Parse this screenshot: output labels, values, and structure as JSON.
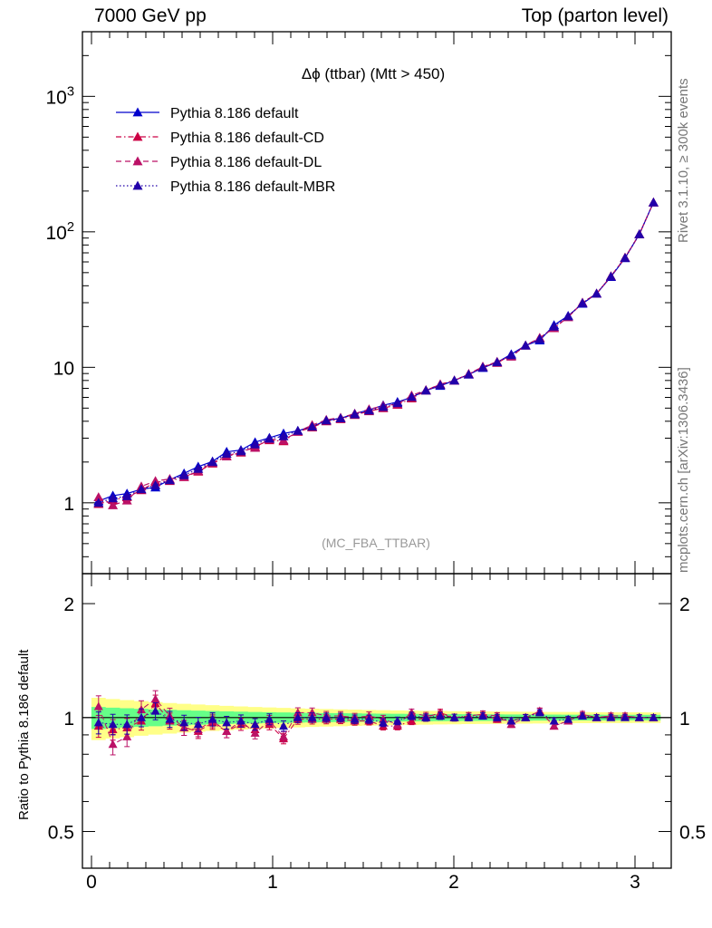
{
  "header": {
    "left": "7000 GeV pp",
    "right": "Top (parton level)"
  },
  "side_labels": {
    "rivet": "Rivet 3.1.10, ≥ 300k events",
    "mcplots": "mcplots.cern.ch [arXiv:1306.3436]"
  },
  "ratio_ylabel": "Ratio to Pythia 8.186 default",
  "chart_data": {
    "type": "line",
    "title": "Δϕ (ttbar) (Mtt > 450)",
    "watermark": "(MC_FBA_TTBAR)",
    "main": {
      "yscale": "log",
      "ylim": [
        0.3,
        3000
      ],
      "xlim": [
        -0.05,
        3.2
      ],
      "yticks": [
        1,
        10,
        100,
        1000
      ],
      "ytick_labels": [
        "1",
        "10",
        "10^2",
        "10^3"
      ],
      "legend_position": "top-left",
      "series": [
        {
          "name": "Pythia 8.186 default",
          "color": "#0000cc",
          "line": "solid",
          "marker": "triangle",
          "x": [
            0.039,
            0.118,
            0.196,
            0.275,
            0.353,
            0.432,
            0.511,
            0.589,
            0.668,
            0.746,
            0.825,
            0.903,
            0.982,
            1.06,
            1.139,
            1.218,
            1.296,
            1.375,
            1.453,
            1.532,
            1.61,
            1.689,
            1.767,
            1.846,
            1.925,
            2.003,
            2.082,
            2.16,
            2.239,
            2.317,
            2.396,
            2.474,
            2.553,
            2.631,
            2.71,
            2.788,
            2.867,
            2.945,
            3.024,
            3.102
          ],
          "y": [
            1.03,
            1.13,
            1.17,
            1.26,
            1.3,
            1.48,
            1.65,
            1.85,
            2.02,
            2.38,
            2.45,
            2.8,
            3.02,
            3.25,
            3.4,
            3.65,
            4.05,
            4.2,
            4.55,
            4.85,
            5.25,
            5.55,
            6.0,
            6.75,
            7.3,
            8.0,
            8.85,
            9.9,
            10.9,
            12.5,
            14.5,
            15.8,
            20.5,
            24.0,
            29.5,
            35.0,
            46.5,
            64.0,
            96.0,
            165
          ]
        },
        {
          "name": "Pythia 8.186 default-CD",
          "color": "#cc0044",
          "line": "dashdot",
          "marker": "triangle",
          "x": [
            0.039,
            0.118,
            0.196,
            0.275,
            0.353,
            0.432,
            0.511,
            0.589,
            0.668,
            0.746,
            0.825,
            0.903,
            0.982,
            1.06,
            1.139,
            1.218,
            1.296,
            1.375,
            1.453,
            1.532,
            1.61,
            1.689,
            1.767,
            1.846,
            1.925,
            2.003,
            2.082,
            2.16,
            2.239,
            2.317,
            2.396,
            2.474,
            2.553,
            2.631,
            2.71,
            2.788,
            2.867,
            2.945,
            3.024,
            3.102
          ],
          "y": [
            0.98,
            1.05,
            1.1,
            1.24,
            1.42,
            1.45,
            1.55,
            1.7,
            1.95,
            2.2,
            2.35,
            2.6,
            2.9,
            2.85,
            3.35,
            3.6,
            4.0,
            4.15,
            4.45,
            4.75,
            5.0,
            5.3,
            5.9,
            6.75,
            7.5,
            8.0,
            8.9,
            10.1,
            10.8,
            12.2,
            14.5,
            16.5,
            19.5,
            23.5,
            30.0,
            35.0,
            47.0,
            64.5,
            96.0,
            165
          ]
        },
        {
          "name": "Pythia 8.186 default-DL",
          "color": "#bb1166",
          "line": "dashed",
          "marker": "triangle",
          "x": [
            0.039,
            0.118,
            0.196,
            0.275,
            0.353,
            0.432,
            0.511,
            0.589,
            0.668,
            0.746,
            0.825,
            0.903,
            0.982,
            1.06,
            1.139,
            1.218,
            1.296,
            1.375,
            1.453,
            1.532,
            1.61,
            1.689,
            1.767,
            1.846,
            1.925,
            2.003,
            2.082,
            2.16,
            2.239,
            2.317,
            2.396,
            2.474,
            2.553,
            2.631,
            2.71,
            2.788,
            2.867,
            2.945,
            3.024,
            3.102
          ],
          "y": [
            1.1,
            0.96,
            1.04,
            1.32,
            1.45,
            1.5,
            1.55,
            1.72,
            1.98,
            2.2,
            2.4,
            2.55,
            2.95,
            2.9,
            3.35,
            3.75,
            4.1,
            4.25,
            4.55,
            4.9,
            5.2,
            5.35,
            6.2,
            6.8,
            7.45,
            8.0,
            8.95,
            10.1,
            11.0,
            12.0,
            14.5,
            16.5,
            19.5,
            23.5,
            30.0,
            35.0,
            47.0,
            64.5,
            96.0,
            165
          ]
        },
        {
          "name": "Pythia 8.186 default-MBR",
          "color": "#2200aa",
          "line": "dotted",
          "marker": "triangle",
          "x": [
            0.039,
            0.118,
            0.196,
            0.275,
            0.353,
            0.432,
            0.511,
            0.589,
            0.668,
            0.746,
            0.825,
            0.903,
            0.982,
            1.06,
            1.139,
            1.218,
            1.296,
            1.375,
            1.453,
            1.532,
            1.61,
            1.689,
            1.767,
            1.846,
            1.925,
            2.003,
            2.082,
            2.16,
            2.239,
            2.317,
            2.396,
            2.474,
            2.553,
            2.631,
            2.71,
            2.788,
            2.867,
            2.945,
            3.024,
            3.102
          ],
          "y": [
            1.0,
            1.08,
            1.12,
            1.26,
            1.35,
            1.47,
            1.6,
            1.78,
            2.0,
            2.3,
            2.4,
            2.7,
            2.98,
            3.1,
            3.4,
            3.65,
            4.05,
            4.2,
            4.5,
            4.8,
            5.1,
            5.45,
            6.05,
            6.75,
            7.4,
            8.0,
            8.85,
            10.0,
            10.9,
            12.3,
            14.5,
            16.2,
            20.0,
            23.8,
            29.8,
            35.0,
            46.8,
            64.2,
            96.0,
            165
          ]
        }
      ]
    },
    "ratio": {
      "ylabel": "Ratio to Pythia 8.186 default",
      "yscale": "log",
      "ylim": [
        0.4,
        2.4
      ],
      "yticks": [
        0.5,
        1,
        2
      ],
      "ytick_labels": [
        "0.5",
        "1",
        "2"
      ],
      "xticks": [
        0,
        1,
        2,
        3
      ],
      "xtick_labels": [
        "0",
        "1",
        "2",
        "3"
      ],
      "band_colors": {
        "stat": "#66ff88",
        "total": "#ffff88"
      },
      "series": [
        {
          "name": "Pythia 8.186 default-CD",
          "color": "#cc0044",
          "y": [
            0.95,
            0.93,
            0.94,
            0.98,
            1.09,
            0.98,
            0.94,
            0.92,
            0.97,
            0.92,
            0.96,
            0.93,
            0.96,
            0.88,
            0.99,
            0.99,
            0.99,
            0.99,
            0.98,
            0.98,
            0.95,
            0.95,
            0.98,
            1.0,
            1.03,
            1.0,
            1.01,
            1.02,
            0.99,
            0.98,
            1.0,
            1.04,
            0.95,
            0.98,
            1.02,
            1.0,
            1.01,
            1.01,
            1.0,
            1.0
          ]
        },
        {
          "name": "Pythia 8.186 default-DL",
          "color": "#bb1166",
          "y": [
            1.07,
            0.85,
            0.89,
            1.05,
            1.12,
            1.01,
            0.94,
            0.93,
            0.98,
            0.92,
            0.98,
            0.91,
            0.98,
            0.89,
            1.03,
            1.03,
            1.01,
            1.01,
            1.0,
            1.01,
            0.99,
            0.96,
            1.03,
            1.01,
            1.02,
            1.0,
            1.01,
            1.02,
            1.01,
            0.96,
            1.0,
            1.04,
            0.95,
            0.98,
            1.02,
            1.0,
            1.01,
            1.01,
            1.0,
            1.0
          ]
        },
        {
          "name": "Pythia 8.186 default-MBR",
          "color": "#2200aa",
          "y": [
            0.97,
            0.96,
            0.96,
            1.0,
            1.04,
            0.99,
            0.97,
            0.96,
            0.99,
            0.97,
            0.98,
            0.96,
            0.99,
            0.95,
            1.0,
            1.0,
            1.0,
            1.0,
            0.99,
            0.99,
            0.97,
            0.98,
            1.01,
            1.0,
            1.01,
            1.0,
            1.0,
            1.01,
            1.0,
            0.98,
            1.0,
            1.03,
            0.98,
            0.99,
            1.01,
            1.0,
            1.0,
            1.0,
            1.0,
            1.0
          ]
        }
      ]
    }
  }
}
